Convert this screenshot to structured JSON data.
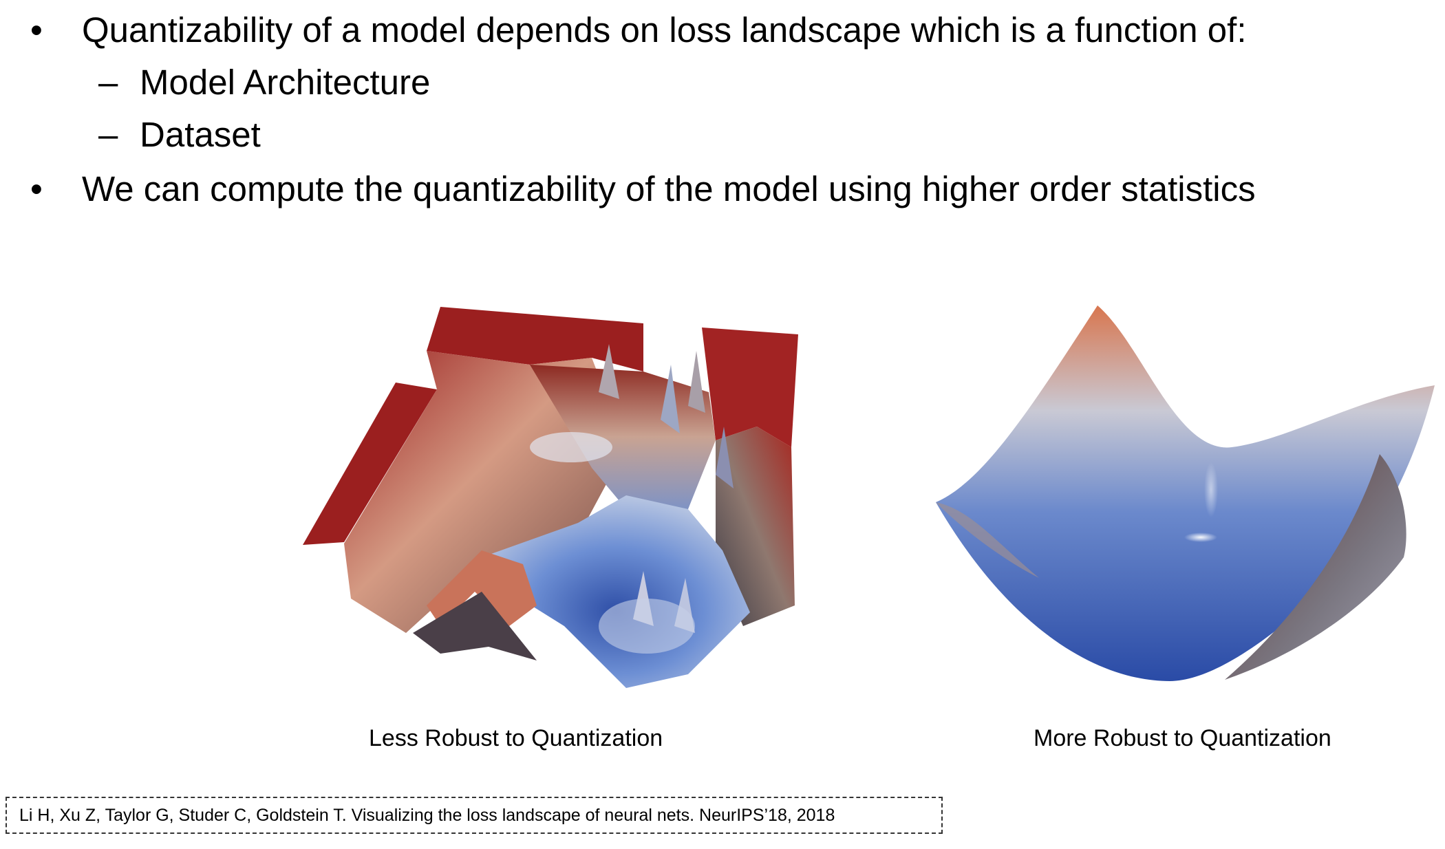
{
  "bullets": [
    {
      "marker": "•",
      "text": "Quantizability of a model depends on loss landscape which is a function of:"
    },
    {
      "marker": "–",
      "text": "Model Architecture"
    },
    {
      "marker": "–",
      "text": "Dataset"
    },
    {
      "marker": "•",
      "text": "We can compute the quantizability of the model using higher order statistics"
    }
  ],
  "figures": {
    "left": {
      "caption": "Less Robust to Quantization",
      "colors": {
        "high": "#9b1f1f",
        "mid": "#d49a83",
        "low": "#3f63b8"
      }
    },
    "right": {
      "caption": "More Robust to Quantization",
      "colors": {
        "high": "#d8764f",
        "mid": "#c9c9d4",
        "low": "#2a4ba6"
      }
    }
  },
  "citation": "Li H, Xu Z, Taylor G, Studer C, Goldstein T. Visualizing the loss landscape of neural nets. NeurIPS’18, 2018"
}
